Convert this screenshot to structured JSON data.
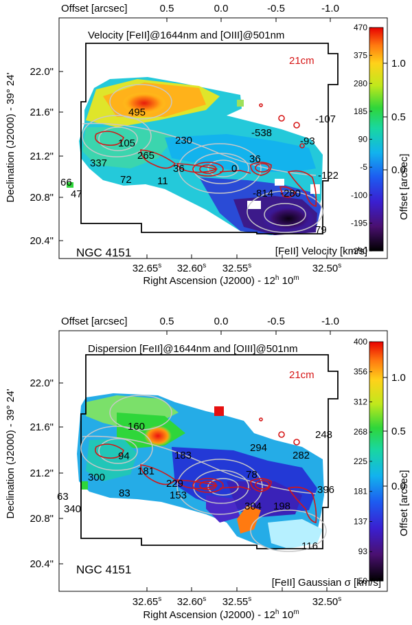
{
  "chart_data": [
    {
      "type": "heatmap",
      "panel": "top",
      "title": "Velocity [FeII]@1644nm and [OIII]@501nm",
      "object_label": "NGC 4151",
      "contour_label": "21cm",
      "colorbar_label": "[FeII] Velocity [km/s]",
      "colorbar_ticks": [
        "470",
        "375",
        "280",
        "185",
        "90",
        "-5",
        "-100",
        "-195",
        "-290"
      ],
      "colorbar_range": [
        -290,
        470
      ],
      "xlabel": "Right Ascension (J2000) - 12h 10m",
      "xlabel_main": "Right Ascension (J2000) - 12",
      "xlabel_h": "h",
      "xlabel_mid": " 10",
      "xlabel_m": "m",
      "ylabel": "Declination (J2000) - 39° 24'",
      "x_ticks": [
        "32.65",
        "32.60",
        "32.55",
        "32.50"
      ],
      "x_tick_sup": "s",
      "y_ticks": [
        "22.0\"",
        "21.6\"",
        "21.2\"",
        "20.8\"",
        "20.4\""
      ],
      "top_axis_label": "Offset [arcsec]",
      "top_ticks": [
        "0.5",
        "0.0",
        "-0.5",
        "-1.0"
      ],
      "right_axis_label": "Offset [arcsec]",
      "right_ticks": [
        "1.0",
        "0.5",
        "0.0"
      ],
      "annotations": [
        "495",
        "-107",
        "-538",
        "105",
        "230",
        "-93",
        "265",
        "337",
        "36",
        "0",
        "36",
        "66",
        "72",
        "11",
        "-122",
        "47",
        "-814",
        "-280",
        "79"
      ]
    },
    {
      "type": "heatmap",
      "panel": "bottom",
      "title": "Dispersion [FeII]@1644nm and [OIII]@501nm",
      "object_label": "NGC 4151",
      "contour_label": "21cm",
      "colorbar_label": "[FeII] Gaussian σ [km/s]",
      "colorbar_ticks": [
        "400",
        "356",
        "312",
        "268",
        "225",
        "181",
        "137",
        "93",
        "50"
      ],
      "colorbar_range": [
        50,
        400
      ],
      "xlabel": "Right Ascension (J2000) - 12h 10m",
      "xlabel_main": "Right Ascension (J2000) - 12",
      "xlabel_h": "h",
      "xlabel_mid": " 10",
      "xlabel_m": "m",
      "ylabel": "Declination (J2000) - 39° 24'",
      "x_ticks": [
        "32.65",
        "32.60",
        "32.55",
        "32.50"
      ],
      "x_tick_sup": "s",
      "y_ticks": [
        "22.0\"",
        "21.6\"",
        "21.2\"",
        "20.8\"",
        "20.4\""
      ],
      "top_axis_label": "Offset [arcsec]",
      "top_ticks": [
        "0.5",
        "0.0",
        "-0.5",
        "-1.0"
      ],
      "right_axis_label": "Offset [arcsec]",
      "right_ticks": [
        "1.0",
        "0.5",
        "0.0"
      ],
      "annotations": [
        "160",
        "248",
        "294",
        "282",
        "94",
        "183",
        "181",
        "300",
        "229",
        "78",
        "396",
        "63",
        "83",
        "153",
        "304",
        "198",
        "340",
        "116"
      ]
    }
  ],
  "colors": {
    "contour_red": "#d61515",
    "contour_gray": "#c8c8c8",
    "outline": "#000000"
  }
}
